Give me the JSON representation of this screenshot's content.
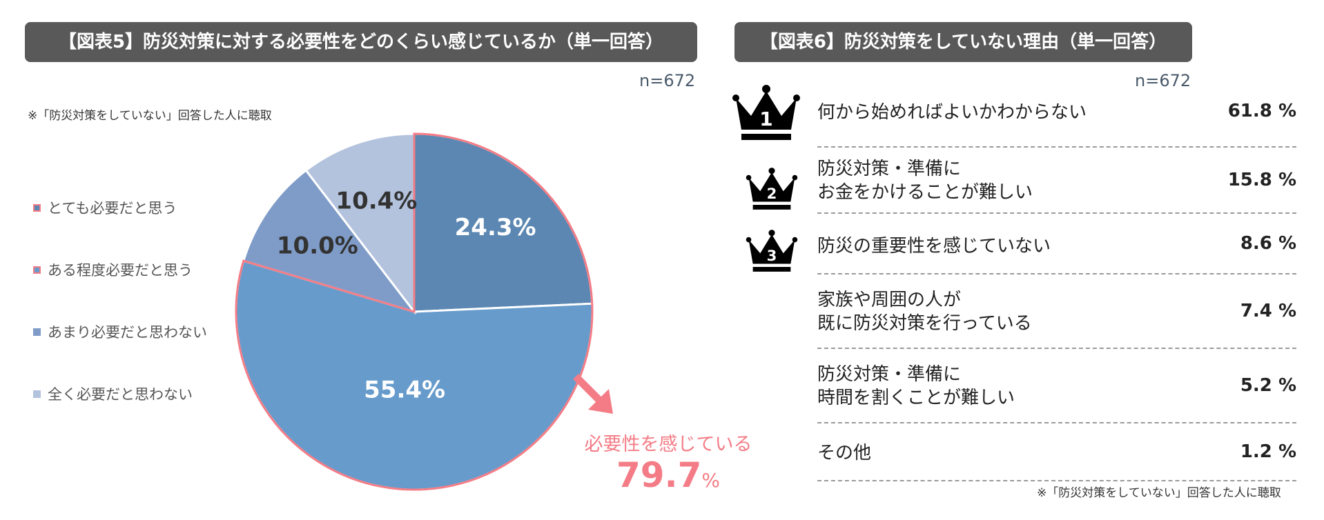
{
  "fig5": {
    "title": "【図表5】防災対策に対する必要性をどのくらい感じているか（単一回答）",
    "n": "n=672",
    "note": "※「防災対策をしていない」回答した人に聴取",
    "callout_text": "必要性を感じている",
    "callout_value": "79.7",
    "callout_unit": "%"
  },
  "fig6": {
    "title": "【図表6】防災対策をしていない理由（単一回答）",
    "n": "n=672",
    "note": "※「防災対策をしていない」回答した人に聴取",
    "unit": "%"
  },
  "colors": {
    "slice_1": "#5b87b2",
    "slice_2": "#669bcb",
    "slice_3": "#7f9cc8",
    "slice_4": "#b3c3de",
    "highlight": "#f47c86",
    "banner": "#595959"
  },
  "chart_data": [
    {
      "type": "pie",
      "title": "【図表5】防災対策に対する必要性をどのくらい感じているか（単一回答）",
      "categories": [
        "とても必要だと思う",
        "ある程度必要だと思う",
        "あまり必要だと思わない",
        "全く必要だと思わない"
      ],
      "values": [
        24.3,
        55.4,
        10.0,
        10.4
      ],
      "labels": [
        "24.3%",
        "55.4%",
        "10.0%",
        "10.4%"
      ],
      "legend_position": "left"
    },
    {
      "type": "table",
      "title": "【図表6】防災対策をしていない理由（単一回答）",
      "rows": [
        {
          "rank": "1",
          "lines": [
            "何から始めればよいかわからない"
          ],
          "value": 61.8,
          "value_label": "61.8"
        },
        {
          "rank": "2",
          "lines": [
            "防災対策・準備に",
            "お金をかけることが難しい"
          ],
          "value": 15.8,
          "value_label": "15.8"
        },
        {
          "rank": "3",
          "lines": [
            "防災の重要性を感じていない"
          ],
          "value": 8.6,
          "value_label": "8.6"
        },
        {
          "rank": "",
          "lines": [
            "家族や周囲の人が",
            "既に防災対策を行っている"
          ],
          "value": 7.4,
          "value_label": "7.4"
        },
        {
          "rank": "",
          "lines": [
            "防災対策・準備に",
            "時間を割くことが難しい"
          ],
          "value": 5.2,
          "value_label": "5.2"
        },
        {
          "rank": "",
          "lines": [
            "その他"
          ],
          "value": 1.2,
          "value_label": "1.2"
        }
      ]
    }
  ]
}
